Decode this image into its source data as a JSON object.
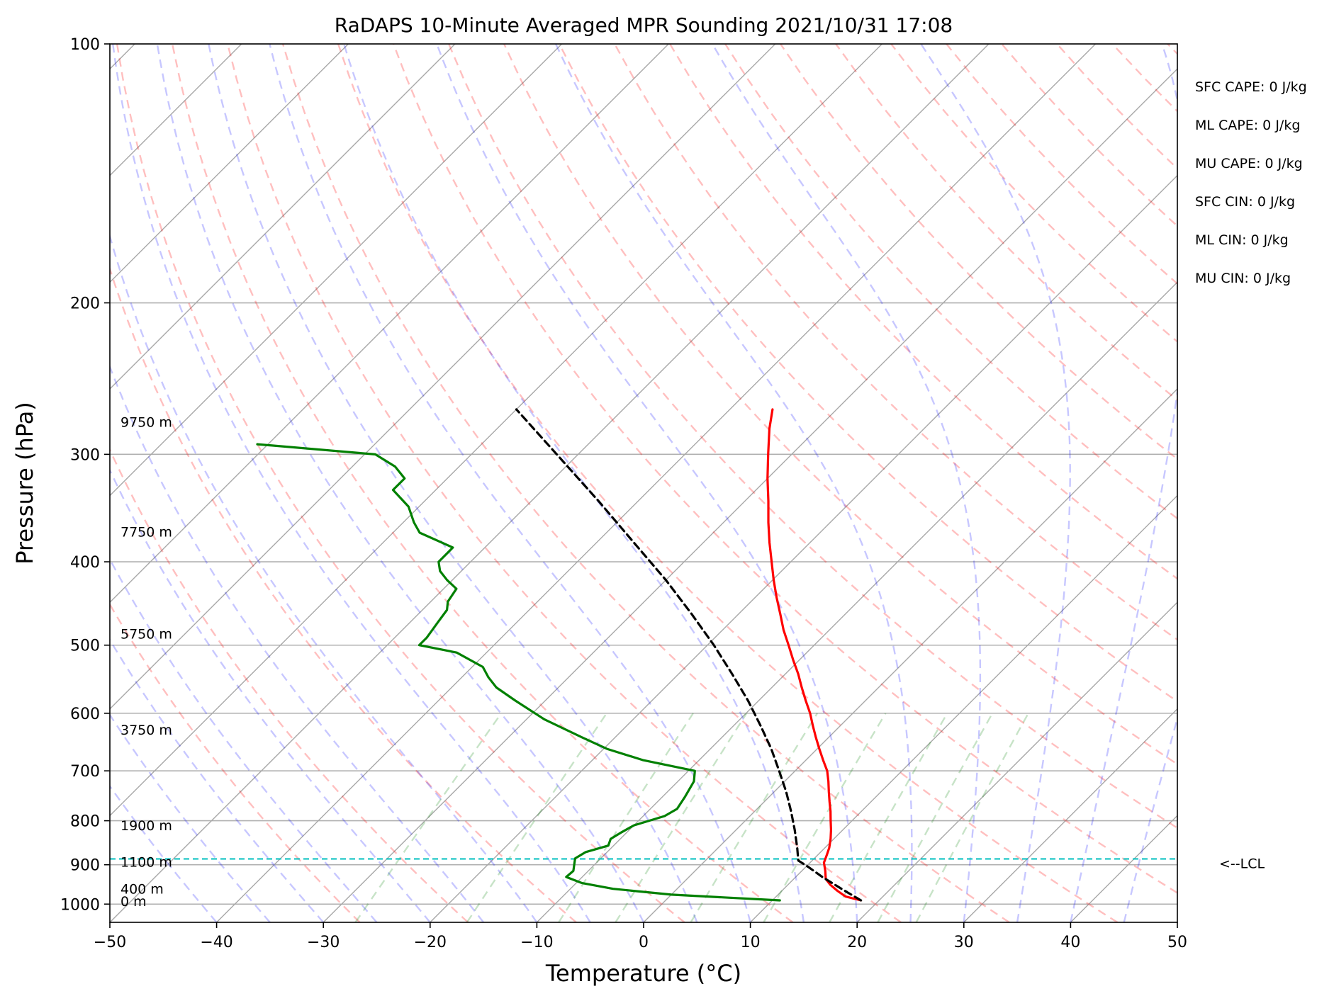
{
  "chart_data": {
    "type": "line",
    "title": "RaDAPS 10-Minute Averaged MPR Sounding 2021/10/31 17:08",
    "xlabel": "Temperature (°C)",
    "ylabel": "Pressure (hPa)",
    "xlim": [
      -50,
      50
    ],
    "ylim": [
      1050,
      100
    ],
    "y_scale": "log",
    "skew": "isotherms skewed 45°",
    "x_ticks": [
      "−50",
      "−40",
      "−30",
      "−20",
      "−10",
      "0",
      "10",
      "20",
      "30",
      "40",
      "50"
    ],
    "x_tick_values": [
      -50,
      -40,
      -30,
      -20,
      -10,
      0,
      10,
      20,
      30,
      40,
      50
    ],
    "y_ticks": [
      "100",
      "200",
      "300",
      "400",
      "500",
      "600",
      "700",
      "800",
      "900",
      "1000"
    ],
    "y_tick_values": [
      100,
      200,
      300,
      400,
      500,
      600,
      700,
      800,
      900,
      1000
    ],
    "grid": true,
    "series": [
      {
        "color": "#ff0000",
        "pressure": [
          990,
          980,
          965,
          950,
          935,
          915,
          895,
          875,
          860,
          840,
          820,
          800,
          780,
          760,
          740,
          720,
          700,
          680,
          660,
          640,
          620,
          600,
          580,
          560,
          540,
          520,
          500,
          480,
          460,
          440,
          420,
          400,
          380,
          360,
          340,
          320,
          300,
          280,
          266
        ],
        "temperature": [
          18.3,
          16.5,
          15.2,
          14.0,
          13.0,
          12.2,
          11.3,
          10.8,
          10.4,
          9.7,
          8.9,
          8.0,
          7.1,
          6.1,
          5.1,
          4.1,
          3.0,
          1.6,
          0.2,
          -1.2,
          -2.6,
          -4.0,
          -5.6,
          -7.2,
          -8.8,
          -10.6,
          -12.4,
          -14.3,
          -16.1,
          -18.0,
          -19.9,
          -21.8,
          -23.8,
          -25.8,
          -27.8,
          -30.0,
          -32.2,
          -34.5,
          -36.0
        ]
      },
      {
        "color": "#008000",
        "pressure": [
          990,
          975,
          960,
          945,
          930,
          915,
          900,
          885,
          870,
          855,
          840,
          825,
          810,
          790,
          775,
          750,
          720,
          700,
          680,
          660,
          640,
          610,
          580,
          560,
          545,
          530,
          510,
          500,
          490,
          470,
          455,
          445,
          430,
          420,
          410,
          400,
          385,
          370,
          360,
          345,
          330,
          320,
          310,
          300,
          292
        ],
        "temperature": [
          10.7,
          0.0,
          -6.0,
          -9.5,
          -11.5,
          -11.4,
          -11.9,
          -12.4,
          -12.0,
          -10.5,
          -10.9,
          -10.5,
          -10.0,
          -8.0,
          -7.5,
          -7.9,
          -8.5,
          -9.4,
          -15.3,
          -19.7,
          -23.1,
          -28.3,
          -32.8,
          -35.8,
          -37.5,
          -39.0,
          -42.8,
          -47.0,
          -47.0,
          -47.4,
          -47.7,
          -48.4,
          -48.8,
          -50.5,
          -52.0,
          -53.0,
          -53.0,
          -57.5,
          -59.0,
          -61.0,
          -64.0,
          -64.0,
          -66.0,
          -69.0,
          -81.0
        ]
      },
      {
        "color": "#000000",
        "pressure": [
          990,
          960,
          930,
          905,
          890,
          860,
          820,
          780,
          740,
          700,
          660,
          620,
          580,
          540,
          500,
          460,
          420,
          380,
          340,
          300,
          266
        ],
        "temperature": [
          18.3,
          15.4,
          12.5,
          10.2,
          8.7,
          7.4,
          5.5,
          3.4,
          1.1,
          -1.5,
          -4.3,
          -7.5,
          -11.0,
          -15.0,
          -19.4,
          -24.4,
          -30.0,
          -36.5,
          -43.7,
          -52.0,
          -60.0
        ]
      }
    ],
    "height_labels": [
      "9750 m",
      "7750 m",
      "5750 m",
      "3750 m",
      "1900 m",
      "1100 m",
      "400 m",
      "0 m"
    ],
    "height_label_pressures": [
      275,
      369,
      485,
      627,
      810,
      893,
      960,
      992
    ],
    "lcl_pressure": 886,
    "lcl_label": "<--LCL",
    "lcl_color": "#00bfbf",
    "indices": [
      "SFC CAPE: 0 J/kg",
      "ML CAPE: 0 J/kg",
      "MU CAPE: 0 J/kg",
      "SFC CIN: 0 J/kg",
      "ML CIN: 0 J/kg",
      "MU CIN: 0 J/kg"
    ],
    "dry_adiabat_color": "#ff0000",
    "moist_adiabat_color": "#0000ff",
    "mixing_ratio_color": "#008000"
  }
}
